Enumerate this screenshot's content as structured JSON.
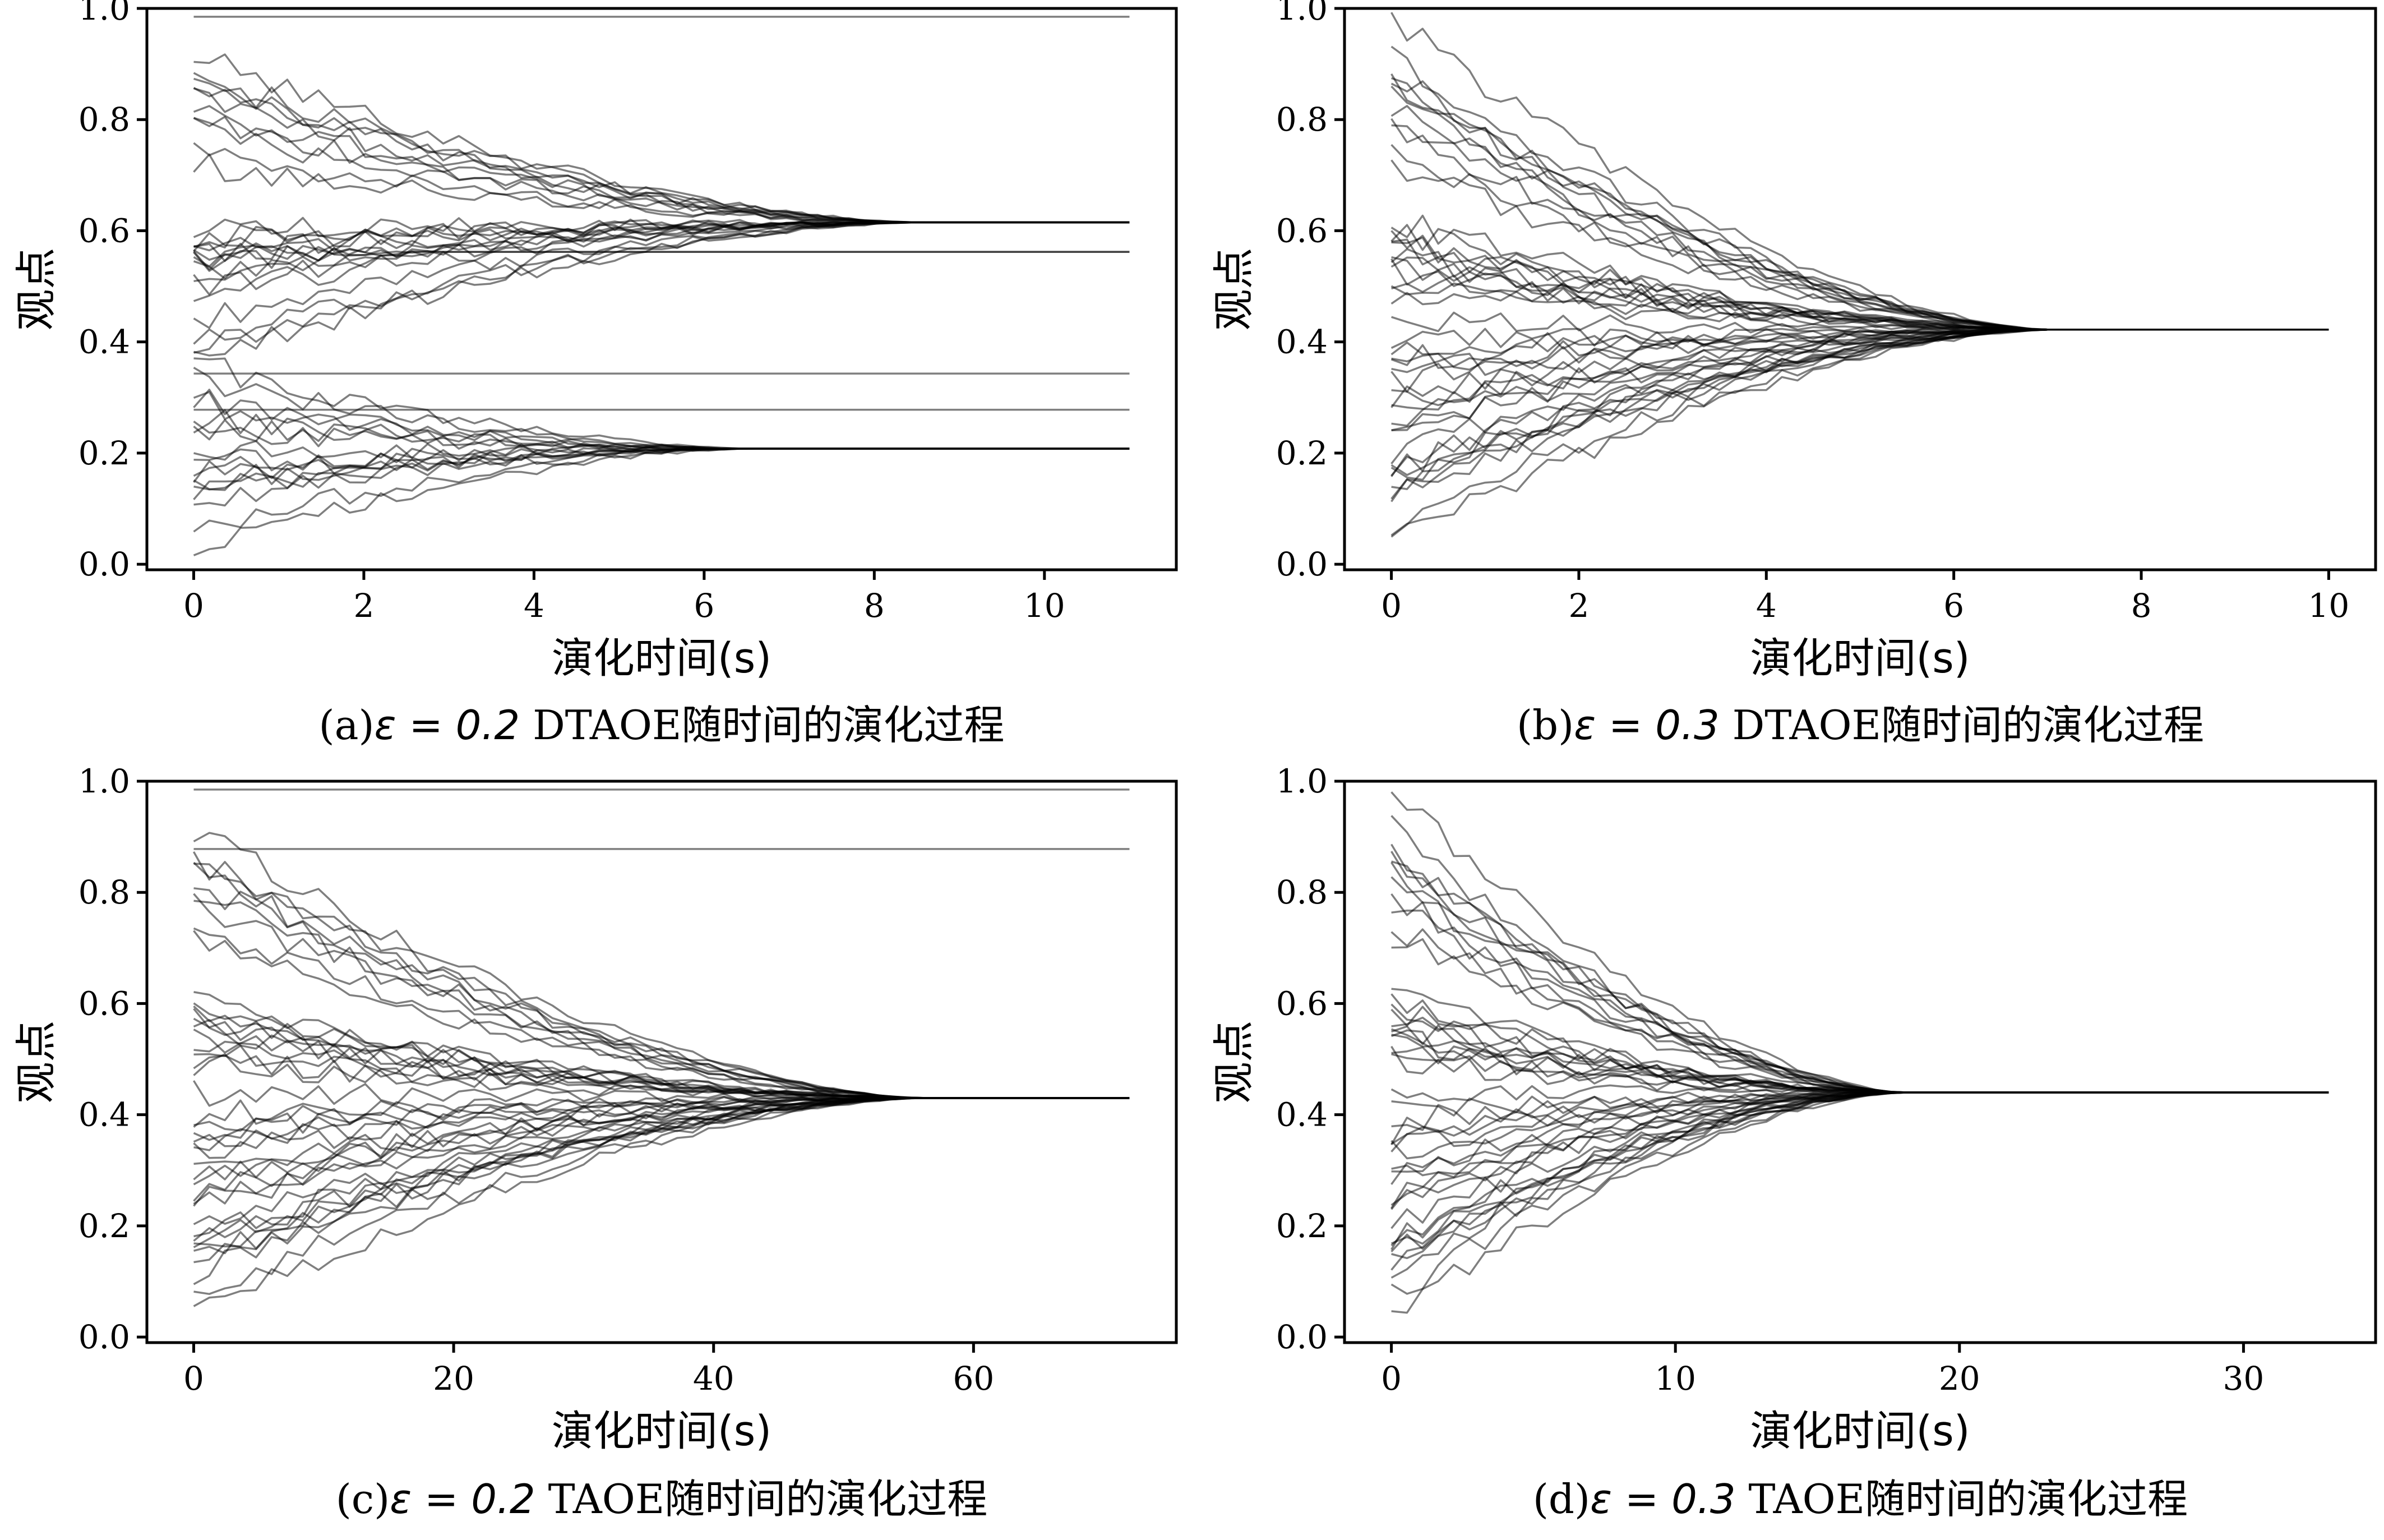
{
  "chart_data": [
    {
      "type": "line",
      "caption_prefix": "(a)",
      "caption_symbol": "ε",
      "caption_eq": " = 0.2 ",
      "caption_suffix": "DTAOE随时间的演化过程",
      "xlabel": "演化时间(s)",
      "ylabel": "观点",
      "xlim": [
        -0.55,
        11.55
      ],
      "ylim": [
        -0.01,
        1.0
      ],
      "xticks": [
        0,
        2,
        4,
        6,
        8,
        10
      ],
      "yticks": [
        0.0,
        0.2,
        0.4,
        0.6,
        0.8,
        1.0
      ],
      "xmax": 11,
      "grid": false,
      "series_count": 50,
      "clusters": [
        {
          "value": 0.985,
          "members": [
            0.985
          ],
          "converge": 0
        },
        {
          "value": 0.615,
          "members": [
            0.915,
            0.88,
            0.87,
            0.86,
            0.84,
            0.82,
            0.8,
            0.78,
            0.74,
            0.72,
            0.6,
            0.59,
            0.58,
            0.57,
            0.56,
            0.55,
            0.54,
            0.53,
            0.52,
            0.5,
            0.49,
            0.44,
            0.4,
            0.39,
            0.37
          ],
          "converge": 8.5
        },
        {
          "value": 0.562,
          "members": [
            0.57,
            0.55
          ],
          "converge": 3
        },
        {
          "value": 0.343,
          "members": [
            0.343
          ],
          "converge": 0
        },
        {
          "value": 0.278,
          "members": [
            0.278
          ],
          "converge": 0
        },
        {
          "value": 0.208,
          "members": [
            0.36,
            0.33,
            0.3,
            0.29,
            0.26,
            0.25,
            0.24,
            0.2,
            0.18,
            0.17,
            0.16,
            0.15,
            0.14,
            0.13,
            0.12,
            0.07,
            0.035
          ],
          "converge": 6.5
        }
      ]
    },
    {
      "type": "line",
      "caption_prefix": "(b)",
      "caption_symbol": "ε",
      "caption_eq": " = 0.3 ",
      "caption_suffix": "DTAOE随时间的演化过程",
      "xlabel": "演化时间(s)",
      "ylabel": "观点",
      "xlim": [
        -0.5,
        10.5
      ],
      "ylim": [
        -0.01,
        1.0
      ],
      "xticks": [
        0,
        2,
        4,
        6,
        8,
        10
      ],
      "yticks": [
        0.0,
        0.2,
        0.4,
        0.6,
        0.8,
        1.0
      ],
      "xmax": 10,
      "grid": false,
      "series_count": 50,
      "clusters": [
        {
          "value": 0.422,
          "members": [
            0.985,
            0.915,
            0.88,
            0.87,
            0.86,
            0.84,
            0.82,
            0.8,
            0.78,
            0.74,
            0.72,
            0.62,
            0.6,
            0.59,
            0.58,
            0.57,
            0.56,
            0.55,
            0.54,
            0.53,
            0.52,
            0.5,
            0.49,
            0.44,
            0.4,
            0.39,
            0.37,
            0.36,
            0.343,
            0.33,
            0.3,
            0.29,
            0.278,
            0.26,
            0.25,
            0.24,
            0.2,
            0.18,
            0.17,
            0.16,
            0.15,
            0.14,
            0.13,
            0.12,
            0.07,
            0.035
          ],
          "converge": 7
        }
      ]
    },
    {
      "type": "line",
      "caption_prefix": "(c)",
      "caption_symbol": "ε",
      "caption_eq": " = 0.2 ",
      "caption_suffix": "TAOE随时间的演化过程",
      "xlabel": "演化时间(s)",
      "ylabel": "观点",
      "xlim": [
        -3.6,
        75.6
      ],
      "ylim": [
        -0.01,
        1.0
      ],
      "xticks": [
        0,
        20,
        40,
        60
      ],
      "yticks": [
        0.0,
        0.2,
        0.4,
        0.6,
        0.8,
        1.0
      ],
      "xmax": 72,
      "grid": false,
      "series_count": 50,
      "clusters": [
        {
          "value": 0.985,
          "members": [
            0.985
          ],
          "converge": 0
        },
        {
          "value": 0.878,
          "members": [
            0.878
          ],
          "converge": 0
        },
        {
          "value": 0.43,
          "members": [
            0.915,
            0.87,
            0.86,
            0.84,
            0.82,
            0.8,
            0.78,
            0.74,
            0.72,
            0.6,
            0.59,
            0.58,
            0.57,
            0.56,
            0.55,
            0.54,
            0.53,
            0.52,
            0.5,
            0.49,
            0.44,
            0.4,
            0.39,
            0.37,
            0.36,
            0.343,
            0.33,
            0.3,
            0.29,
            0.278,
            0.26,
            0.25,
            0.24,
            0.2,
            0.18,
            0.17,
            0.16,
            0.15,
            0.14,
            0.13,
            0.12,
            0.07,
            0.035
          ],
          "converge": 56
        }
      ]
    },
    {
      "type": "line",
      "caption_prefix": "(d)",
      "caption_symbol": "ε",
      "caption_eq": " = 0.3 ",
      "caption_suffix": "TAOE随时间的演化过程",
      "xlabel": "演化时间(s)",
      "ylabel": "观点",
      "xlim": [
        -1.65,
        34.65
      ],
      "ylim": [
        -0.01,
        1.0
      ],
      "xticks": [
        0,
        10,
        20,
        30
      ],
      "yticks": [
        0.0,
        0.2,
        0.4,
        0.6,
        0.8,
        1.0
      ],
      "xmax": 33,
      "grid": false,
      "series_count": 50,
      "clusters": [
        {
          "value": 0.44,
          "members": [
            0.985,
            0.915,
            0.88,
            0.87,
            0.86,
            0.84,
            0.82,
            0.8,
            0.78,
            0.74,
            0.72,
            0.62,
            0.6,
            0.59,
            0.58,
            0.57,
            0.56,
            0.55,
            0.54,
            0.53,
            0.52,
            0.5,
            0.49,
            0.44,
            0.4,
            0.39,
            0.37,
            0.36,
            0.343,
            0.33,
            0.3,
            0.29,
            0.278,
            0.26,
            0.25,
            0.24,
            0.2,
            0.18,
            0.17,
            0.16,
            0.15,
            0.14,
            0.13,
            0.12,
            0.07,
            0.035
          ],
          "converge": 18
        }
      ]
    }
  ]
}
